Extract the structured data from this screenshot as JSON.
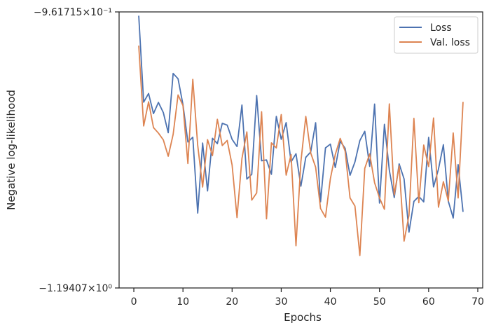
{
  "chart_data": {
    "type": "line",
    "xlabel": "Epochs",
    "ylabel": "Negative log-likelihood",
    "xlim": [
      -3,
      71
    ],
    "ylim": [
      -1.19407,
      -0.961715
    ],
    "y_scale": "symlog",
    "xticks": [
      0,
      10,
      20,
      30,
      40,
      50,
      60,
      70
    ],
    "xtick_labels": [
      "0",
      "10",
      "20",
      "30",
      "40",
      "50",
      "60",
      "70"
    ],
    "ytick_labels": {
      "top": "−9.61715×10⁻¹",
      "bottom": "−1.19407×10⁰"
    },
    "legend": {
      "placement": "top-right"
    },
    "grid": false,
    "x": [
      1,
      2,
      3,
      4,
      5,
      6,
      7,
      8,
      9,
      10,
      11,
      12,
      13,
      14,
      15,
      16,
      17,
      18,
      19,
      20,
      21,
      22,
      23,
      24,
      25,
      26,
      27,
      28,
      29,
      30,
      31,
      32,
      33,
      34,
      35,
      36,
      37,
      38,
      39,
      40,
      41,
      42,
      43,
      44,
      45,
      46,
      47,
      48,
      49,
      50,
      51,
      52,
      53,
      54,
      55,
      56,
      57,
      58,
      59,
      60,
      61,
      62,
      63,
      64,
      65,
      66,
      67
    ],
    "series": [
      {
        "name": "Loss",
        "color": "#4c72b0",
        "values": [
          -0.9649,
          -1.0377,
          -1.0304,
          -1.0473,
          -1.0379,
          -1.0464,
          -1.0634,
          -1.0135,
          -1.018,
          -1.0398,
          -1.0712,
          -1.0672,
          -1.131,
          -1.0721,
          -1.1124,
          -1.0681,
          -1.0726,
          -1.0555,
          -1.057,
          -1.069,
          -1.075,
          -1.0401,
          -1.1024,
          -1.0984,
          -1.0321,
          -1.087,
          -1.0863,
          -1.0984,
          -1.0497,
          -1.069,
          -1.0549,
          -1.088,
          -1.0811,
          -1.1084,
          -1.0841,
          -1.0796,
          -1.055,
          -1.1216,
          -1.0762,
          -1.073,
          -1.0927,
          -1.0705,
          -1.0765,
          -1.0992,
          -1.088,
          -1.07,
          -1.0622,
          -1.0917,
          -1.0393,
          -1.1226,
          -1.0563,
          -1.095,
          -1.118,
          -1.0896,
          -1.1023,
          -1.147,
          -1.1212,
          -1.117,
          -1.1216,
          -1.0673,
          -1.109,
          -1.094,
          -1.0735,
          -1.121,
          -1.1352,
          -1.0902,
          -1.13
        ]
      },
      {
        "name": "Val. loss",
        "color": "#dd8452",
        "values": [
          -0.9901,
          -1.0577,
          -1.0374,
          -1.0591,
          -1.0637,
          -1.0694,
          -1.0832,
          -1.0648,
          -1.0316,
          -1.0405,
          -1.0893,
          -1.0185,
          -1.074,
          -1.1091,
          -1.0692,
          -1.0827,
          -1.0521,
          -1.0742,
          -1.0699,
          -1.0906,
          -1.1348,
          -1.0852,
          -1.0627,
          -1.1201,
          -1.1141,
          -1.0458,
          -1.1359,
          -1.0719,
          -1.0762,
          -1.0481,
          -1.0991,
          -1.0818,
          -1.1585,
          -1.0878,
          -1.0497,
          -1.0805,
          -1.0924,
          -1.1272,
          -1.1345,
          -1.1021,
          -1.0817,
          -1.0682,
          -1.0788,
          -1.1183,
          -1.1251,
          -1.1667,
          -1.0934,
          -1.0812,
          -1.1055,
          -1.1183,
          -1.1278,
          -1.0391,
          -1.1157,
          -1.0913,
          -1.1546,
          -1.1328,
          -1.0513,
          -1.1223,
          -1.0738,
          -1.0919,
          -1.051,
          -1.1261,
          -1.1046,
          -1.1208,
          -1.0636,
          -1.1183,
          -1.0375
        ]
      }
    ]
  }
}
